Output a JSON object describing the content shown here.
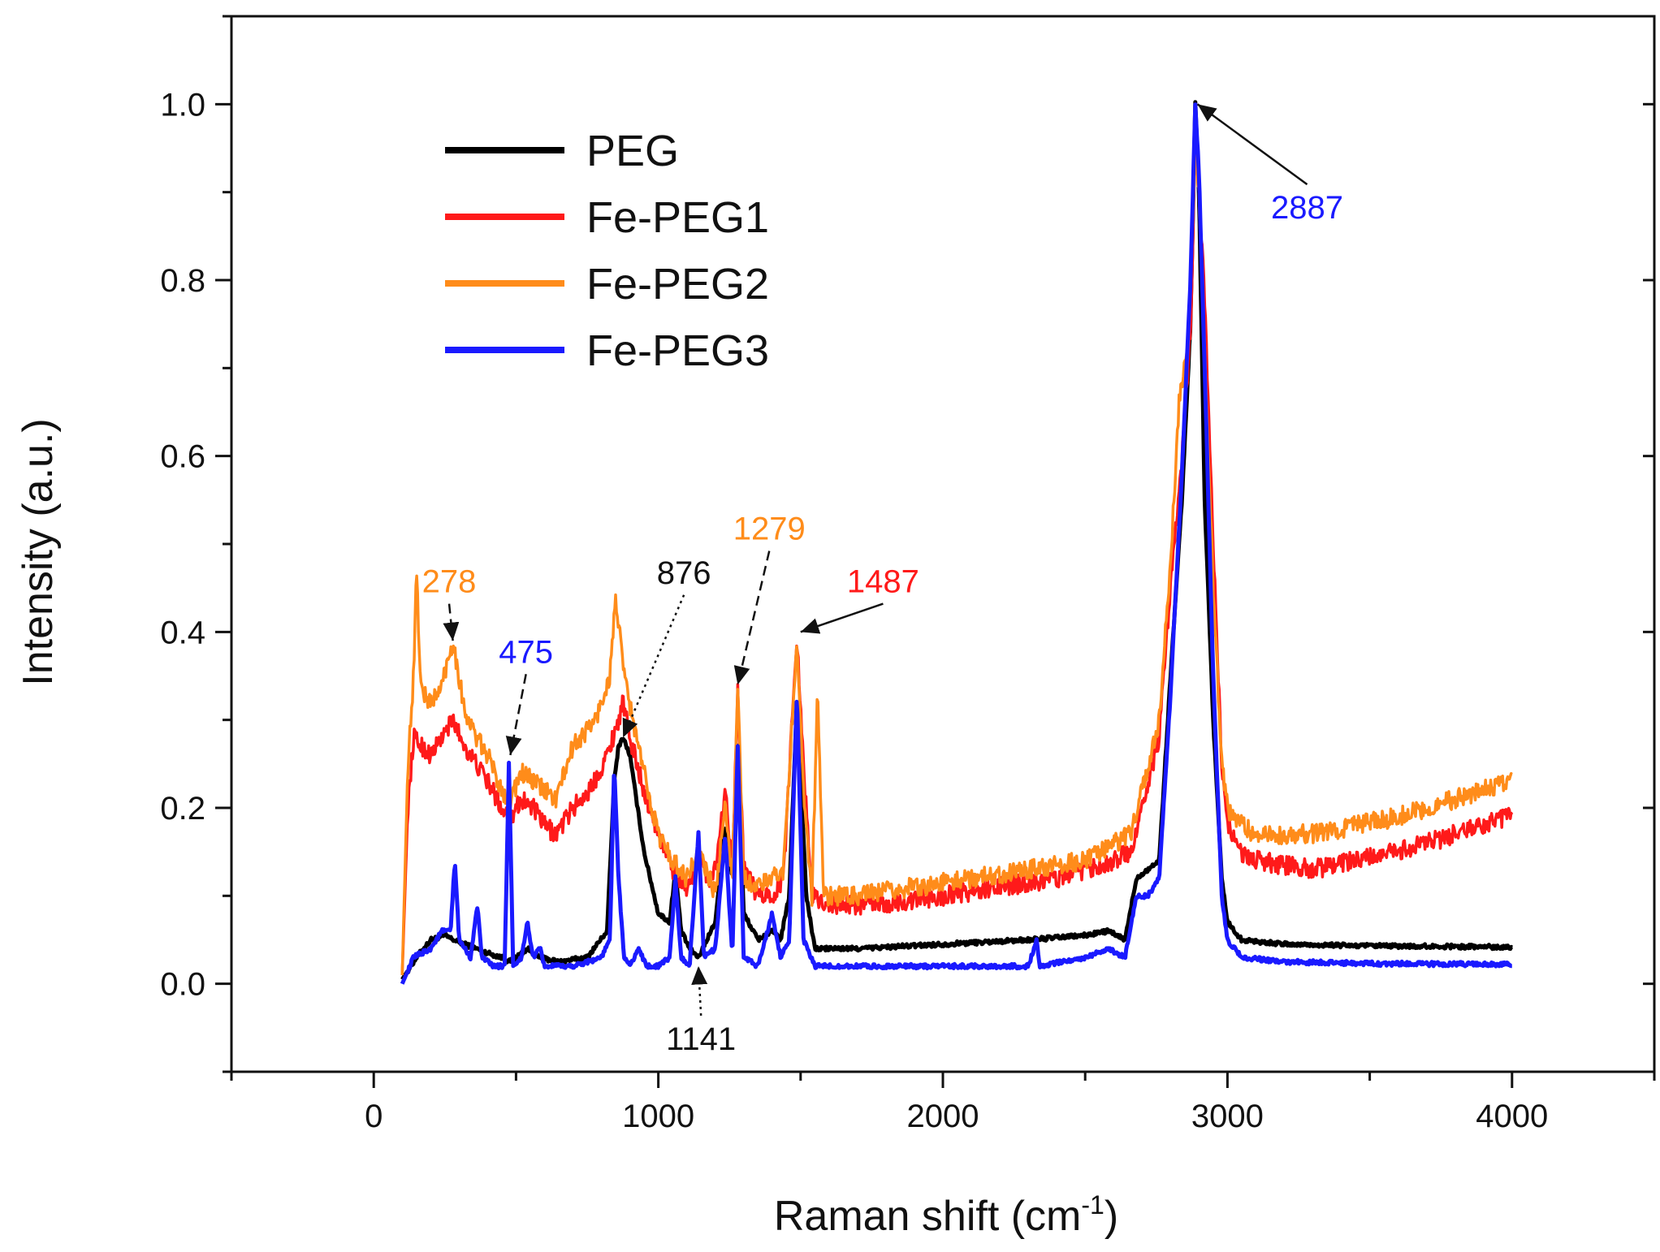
{
  "chart_data": {
    "type": "line",
    "title": "",
    "xlabel": "Raman shift (cm",
    "xlabel_sup": "-1",
    "xlabel_suffix": ")",
    "ylabel": "Intensity (a.u.)",
    "xlim": [
      -500,
      4500
    ],
    "ylim": [
      -0.1,
      1.1
    ],
    "x_ticks": [
      0,
      1000,
      2000,
      3000,
      4000
    ],
    "x_tick_labels": [
      "0",
      "1000",
      "2000",
      "3000",
      "4000"
    ],
    "y_ticks": [
      0.0,
      0.2,
      0.4,
      0.6,
      0.8,
      1.0
    ],
    "y_tick_labels": [
      "0.0",
      "0.2",
      "0.4",
      "0.6",
      "0.8",
      "1.0"
    ],
    "grid": false,
    "legend": "top-left",
    "series": [
      {
        "name": "PEG",
        "color": "#000000",
        "x": [
          100,
          150,
          200,
          250,
          280,
          320,
          360,
          400,
          450,
          475,
          500,
          540,
          580,
          650,
          750,
          820,
          845,
          860,
          876,
          900,
          950,
          1000,
          1040,
          1060,
          1080,
          1110,
          1141,
          1170,
          1200,
          1235,
          1260,
          1279,
          1300,
          1350,
          1400,
          1430,
          1460,
          1487,
          1520,
          1550,
          1700,
          2000,
          2300,
          2500,
          2580,
          2640,
          2680,
          2720,
          2760,
          2800,
          2840,
          2870,
          2887,
          2900,
          2920,
          2950,
          2980,
          3000,
          3050,
          3200,
          3500,
          4000
        ],
        "y": [
          0.005,
          0.03,
          0.05,
          0.055,
          0.05,
          0.045,
          0.04,
          0.035,
          0.03,
          0.025,
          0.03,
          0.04,
          0.03,
          0.025,
          0.03,
          0.06,
          0.23,
          0.27,
          0.28,
          0.26,
          0.15,
          0.08,
          0.07,
          0.13,
          0.06,
          0.04,
          0.03,
          0.05,
          0.07,
          0.18,
          0.12,
          0.27,
          0.08,
          0.05,
          0.06,
          0.05,
          0.1,
          0.32,
          0.1,
          0.04,
          0.04,
          0.045,
          0.05,
          0.055,
          0.06,
          0.05,
          0.12,
          0.13,
          0.14,
          0.35,
          0.55,
          0.75,
          1.0,
          0.9,
          0.55,
          0.3,
          0.12,
          0.07,
          0.05,
          0.045,
          0.043,
          0.042
        ]
      },
      {
        "name": "Fe-PEG1",
        "color": "#ff1a1a",
        "x": [
          100,
          120,
          140,
          170,
          200,
          240,
          278,
          320,
          360,
          400,
          450,
          480,
          520,
          560,
          600,
          640,
          700,
          760,
          820,
          860,
          876,
          900,
          950,
          1000,
          1050,
          1100,
          1141,
          1180,
          1200,
          1235,
          1260,
          1279,
          1300,
          1350,
          1400,
          1440,
          1470,
          1487,
          1510,
          1540,
          1600,
          1800,
          2000,
          2200,
          2400,
          2600,
          2660,
          2700,
          2760,
          2800,
          2840,
          2870,
          2887,
          2900,
          2920,
          2950,
          2980,
          3000,
          3050,
          3100,
          3300,
          3600,
          4000
        ],
        "y": [
          0.01,
          0.2,
          0.28,
          0.27,
          0.26,
          0.28,
          0.3,
          0.27,
          0.25,
          0.23,
          0.2,
          0.19,
          0.21,
          0.2,
          0.18,
          0.17,
          0.2,
          0.22,
          0.26,
          0.3,
          0.32,
          0.28,
          0.22,
          0.17,
          0.13,
          0.11,
          0.14,
          0.12,
          0.13,
          0.22,
          0.14,
          0.33,
          0.13,
          0.1,
          0.1,
          0.12,
          0.3,
          0.4,
          0.25,
          0.1,
          0.09,
          0.09,
          0.1,
          0.11,
          0.12,
          0.14,
          0.15,
          0.2,
          0.28,
          0.45,
          0.6,
          0.74,
          0.96,
          0.9,
          0.78,
          0.5,
          0.25,
          0.18,
          0.15,
          0.14,
          0.13,
          0.15,
          0.19
        ]
      },
      {
        "name": "Fe-PEG2",
        "color": "#ff8c1a",
        "x": [
          100,
          120,
          140,
          150,
          165,
          190,
          230,
          278,
          320,
          360,
          400,
          450,
          480,
          520,
          560,
          600,
          640,
          700,
          780,
          830,
          850,
          876,
          910,
          950,
          1000,
          1050,
          1100,
          1141,
          1180,
          1200,
          1235,
          1260,
          1279,
          1300,
          1350,
          1400,
          1440,
          1470,
          1487,
          1510,
          1540,
          1560,
          1580,
          1700,
          1900,
          2100,
          2300,
          2500,
          2660,
          2700,
          2760,
          2800,
          2830,
          2860,
          2887,
          2900,
          2920,
          2950,
          2980,
          3000,
          3050,
          3100,
          3300,
          3600,
          4000
        ],
        "y": [
          0.01,
          0.25,
          0.35,
          0.47,
          0.34,
          0.32,
          0.33,
          0.39,
          0.31,
          0.28,
          0.26,
          0.22,
          0.21,
          0.24,
          0.23,
          0.22,
          0.21,
          0.27,
          0.3,
          0.35,
          0.44,
          0.36,
          0.3,
          0.24,
          0.17,
          0.14,
          0.12,
          0.15,
          0.12,
          0.1,
          0.2,
          0.12,
          0.34,
          0.12,
          0.11,
          0.12,
          0.13,
          0.3,
          0.38,
          0.22,
          0.1,
          0.34,
          0.1,
          0.1,
          0.11,
          0.12,
          0.13,
          0.14,
          0.17,
          0.22,
          0.3,
          0.48,
          0.66,
          0.72,
          0.95,
          0.9,
          0.72,
          0.45,
          0.25,
          0.2,
          0.18,
          0.17,
          0.17,
          0.19,
          0.23
        ]
      },
      {
        "name": "Fe-PEG3",
        "color": "#1a1aff",
        "x": [
          100,
          140,
          200,
          240,
          270,
          285,
          300,
          340,
          365,
          380,
          420,
          460,
          475,
          490,
          520,
          540,
          560,
          585,
          600,
          700,
          800,
          830,
          845,
          860,
          880,
          900,
          930,
          960,
          1000,
          1040,
          1060,
          1080,
          1110,
          1141,
          1160,
          1200,
          1235,
          1260,
          1279,
          1300,
          1350,
          1400,
          1430,
          1460,
          1487,
          1510,
          1550,
          1700,
          2000,
          2300,
          2330,
          2340,
          2500,
          2580,
          2640,
          2680,
          2720,
          2760,
          2800,
          2840,
          2870,
          2887,
          2900,
          2920,
          2950,
          2980,
          3000,
          3050,
          3200,
          3500,
          4000
        ],
        "y": [
          0.0,
          0.03,
          0.04,
          0.06,
          0.06,
          0.14,
          0.05,
          0.03,
          0.09,
          0.03,
          0.02,
          0.02,
          0.25,
          0.02,
          0.03,
          0.07,
          0.03,
          0.04,
          0.02,
          0.02,
          0.03,
          0.05,
          0.25,
          0.12,
          0.03,
          0.02,
          0.04,
          0.02,
          0.02,
          0.03,
          0.12,
          0.03,
          0.02,
          0.17,
          0.03,
          0.04,
          0.17,
          0.03,
          0.27,
          0.03,
          0.02,
          0.08,
          0.03,
          0.05,
          0.33,
          0.05,
          0.02,
          0.02,
          0.02,
          0.02,
          0.05,
          0.02,
          0.03,
          0.04,
          0.03,
          0.1,
          0.1,
          0.12,
          0.33,
          0.58,
          0.8,
          1.0,
          0.92,
          0.7,
          0.35,
          0.1,
          0.05,
          0.03,
          0.025,
          0.023,
          0.022
        ]
      }
    ],
    "annotations": [
      {
        "text": "278",
        "color": "#ff8c1a",
        "label_x": 265,
        "label_y": 0.445,
        "tip_x": 278,
        "tip_y": 0.39,
        "style": "dashed"
      },
      {
        "text": "475",
        "color": "#1a1aff",
        "label_x": 535,
        "label_y": 0.365,
        "tip_x": 480,
        "tip_y": 0.26,
        "style": "dashed"
      },
      {
        "text": "876",
        "color": "#111111",
        "label_x": 1090,
        "label_y": 0.455,
        "tip_x": 876,
        "tip_y": 0.28,
        "style": "dotted"
      },
      {
        "text": "1279",
        "color": "#ff8c1a",
        "label_x": 1390,
        "label_y": 0.505,
        "tip_x": 1279,
        "tip_y": 0.34,
        "style": "dashed"
      },
      {
        "text": "1487",
        "color": "#ff1a1a",
        "label_x": 1790,
        "label_y": 0.445,
        "tip_x": 1500,
        "tip_y": 0.4,
        "style": "solid"
      },
      {
        "text": "2887",
        "color": "#1a1aff",
        "label_x": 3280,
        "label_y": 0.87,
        "tip_x": 2895,
        "tip_y": 1.0,
        "style": "solid"
      },
      {
        "text": "1141",
        "color": "#111111",
        "label_x": 1150,
        "label_y": -0.075,
        "tip_x": 1141,
        "tip_y": 0.02,
        "style": "dotted"
      }
    ]
  }
}
